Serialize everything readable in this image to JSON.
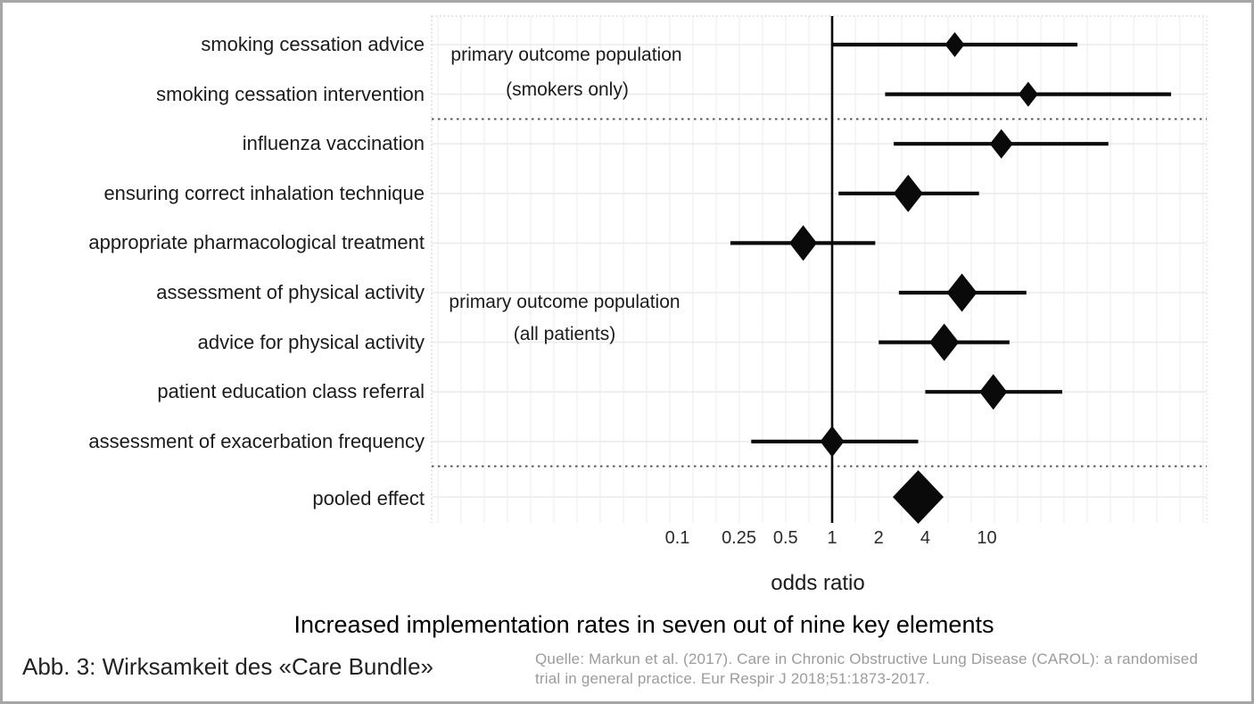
{
  "figure": {
    "title": "Increased implementation rates in seven out of nine key elements",
    "caption_left": "Abb. 3: Wirksamkeit des «Care Bundle»",
    "source_line1": "Quelle: Markun et al. (2017). Care in Chronic Obstructive Lung Disease (CAROL): a randomised",
    "source_line2": "trial in general practice. Eur Respir J 2018;51:1873-2017."
  },
  "chart_data": {
    "type": "scatter",
    "subtype": "forest-plot",
    "xlabel": "odds ratio",
    "x_scale": "log10",
    "x_ticks": [
      0.1,
      0.25,
      0.5,
      1,
      2,
      4,
      10
    ],
    "x_tick_labels": [
      "0.1",
      "0.25",
      "0.5",
      "1",
      "2",
      "4",
      "10"
    ],
    "x_range": [
      0.08,
      260
    ],
    "reference_line": 1,
    "grid": "on",
    "annotations": [
      {
        "line1": "primary outcome population",
        "line2": "(smokers only)"
      },
      {
        "line1": "primary outcome population",
        "line2": "(all patients)"
      }
    ],
    "rows": [
      {
        "label": "smoking cessation advice",
        "or": 6.2,
        "ci_low": 1.0,
        "ci_high": 38.5,
        "marker_w": 22,
        "marker_h": 28
      },
      {
        "label": "smoking cessation intervention",
        "or": 18.5,
        "ci_low": 2.2,
        "ci_high": 155,
        "marker_w": 22,
        "marker_h": 28
      },
      {
        "label": "influenza vaccination",
        "or": 12.4,
        "ci_low": 2.5,
        "ci_high": 61,
        "marker_w": 26,
        "marker_h": 33
      },
      {
        "label": "ensuring correct inhalation technique",
        "or": 3.1,
        "ci_low": 1.1,
        "ci_high": 8.9,
        "marker_w": 33,
        "marker_h": 42
      },
      {
        "label": "appropriate pharmacological treatment",
        "or": 0.65,
        "ci_low": 0.22,
        "ci_high": 1.9,
        "marker_w": 31,
        "marker_h": 40
      },
      {
        "label": "assessment of physical activity",
        "or": 6.9,
        "ci_low": 2.7,
        "ci_high": 18.0,
        "marker_w": 34,
        "marker_h": 43
      },
      {
        "label": "advice for physical activity",
        "or": 5.3,
        "ci_low": 2.0,
        "ci_high": 14.0,
        "marker_w": 33,
        "marker_h": 42
      },
      {
        "label": "patient education class referral",
        "or": 11.0,
        "ci_low": 4.0,
        "ci_high": 30.7,
        "marker_w": 31,
        "marker_h": 40
      },
      {
        "label": "assessment of exacerbation frequency",
        "or": 1.0,
        "ci_low": 0.3,
        "ci_high": 3.6,
        "marker_w": 27,
        "marker_h": 35
      }
    ],
    "pooled": {
      "label": "pooled effect",
      "or": 3.6,
      "ci_low": 2.5,
      "ci_high": 5.2,
      "marker_w": 57,
      "marker_h": 60
    },
    "separators_after_rows": [
      2,
      9
    ]
  }
}
